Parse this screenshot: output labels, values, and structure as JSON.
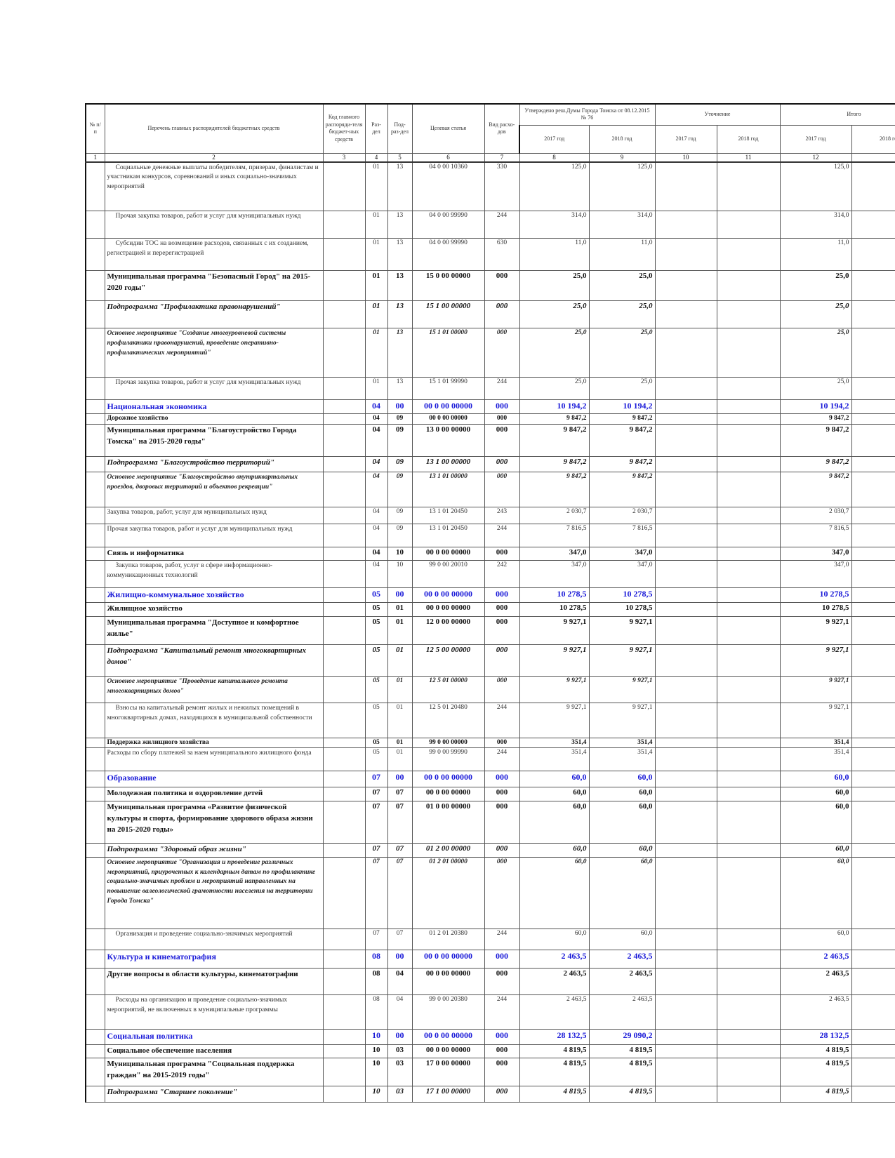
{
  "header": {
    "col_num": "№ п/п",
    "col_name": "Перечень главных распорядителей бюджетных средств",
    "col_code": "Код главного распоряди-теля бюджет-ных средств",
    "col_razdel": "Раз-дел",
    "col_podrazdel": "Под-раз-дел",
    "col_target": "Целевая статья",
    "col_vid": "Вид расхо-дов",
    "approved": "Утверждено реш.Думы Города Томска от 08.12.2015 № 76",
    "clarification": "Уточнение",
    "total": "Итого",
    "y2017": "2017 год",
    "y2018": "2018 год",
    "numbers": [
      "1",
      "2",
      "3",
      "4",
      "5",
      "6",
      "7",
      "8",
      "9",
      "10",
      "11",
      "12",
      ""
    ]
  },
  "rows": [
    {
      "style": "n",
      "name": "Социальные денежные выплаты победителям, призерам, финалистам и участникам конкурсов, соревнований и иных социально-значимых мероприятий",
      "razdel": "01",
      "podrazdel": "13",
      "target": "04 0 00 10360",
      "vid": "330",
      "a2017": "125,0",
      "a2018": "125,0",
      "t2017": "125,0"
    },
    {
      "style": "n",
      "name": "Прочая закупка товаров, работ и услуг для муниципальных нужд",
      "razdel": "01",
      "podrazdel": "13",
      "target": "04 0 00 99990",
      "vid": "244",
      "a2017": "314,0",
      "a2018": "314,0",
      "t2017": "314,0"
    },
    {
      "style": "n",
      "name": "Субсидии ТОС на возмещение расходов, связанных с их созданием, регистрацией и перерегистрацией",
      "razdel": "01",
      "podrazdel": "13",
      "target": "04 0 00 99990",
      "vid": "630",
      "a2017": "11,0",
      "a2018": "11,0",
      "t2017": "11,0"
    },
    {
      "style": "b",
      "name": "Муниципальная программа \"Безопасный Город\" на 2015-2020 годы\"",
      "razdel": "01",
      "podrazdel": "13",
      "target": "15 0 00 00000",
      "vid": "000",
      "a2017": "25,0",
      "a2018": "25,0",
      "t2017": "25,0"
    },
    {
      "style": "bi",
      "name": "Подпрограмма \"Профилактика правонарушений\"",
      "razdel": "01",
      "podrazdel": "13",
      "target": "15 1 00 00000",
      "vid": "000",
      "a2017": "25,0",
      "a2018": "25,0",
      "t2017": "25,0"
    },
    {
      "style": "bis",
      "name": "Основное мероприятие \"Создание многоуровневой системы профилактики правонарушений, проведение оперативно-профилактических мероприятий\"",
      "razdel": "01",
      "podrazdel": "13",
      "target": "15 1 01 00000",
      "vid": "000",
      "a2017": "25,0",
      "a2018": "25,0",
      "t2017": "25,0"
    },
    {
      "style": "n",
      "name": "Прочая закупка товаров, работ и услуг для муниципальных нужд",
      "razdel": "01",
      "podrazdel": "13",
      "target": "15 1 01 99990",
      "vid": "244",
      "a2017": "25,0",
      "a2018": "25,0",
      "t2017": "25,0"
    },
    {
      "style": "blue",
      "name": "Национальная экономика",
      "razdel": "04",
      "podrazdel": "00",
      "target": "00 0 00 00000",
      "vid": "000",
      "a2017": "10 194,2",
      "a2018": "10 194,2",
      "t2017": "10 194,2"
    },
    {
      "style": "bs",
      "name": "Дорожное хозяйство",
      "razdel": "04",
      "podrazdel": "09",
      "target": "00 0 00 00000",
      "vid": "000",
      "a2017": "9 847,2",
      "a2018": "9 847,2",
      "t2017": "9 847,2"
    },
    {
      "style": "b",
      "name": "Муниципальная программа \"Благоустройство Города Томска\" на 2015-2020 годы\"",
      "razdel": "04",
      "podrazdel": "09",
      "target": "13 0 00 00000",
      "vid": "000",
      "a2017": "9 847,2",
      "a2018": "9 847,2",
      "t2017": "9 847,2"
    },
    {
      "style": "bi",
      "name": "Подпрограмма \"Благоустройство территорий\"",
      "razdel": "04",
      "podrazdel": "09",
      "target": "13 1 00 00000",
      "vid": "000",
      "a2017": "9 847,2",
      "a2018": "9 847,2",
      "t2017": "9 847,2"
    },
    {
      "style": "bis",
      "name": "Основное мероприятие \"Благоустройство внутриквартальных проездов, дворовых территорий и объектов рекреации\"",
      "razdel": "04",
      "podrazdel": "09",
      "target": "13 1 01 00000",
      "vid": "000",
      "a2017": "9 847,2",
      "a2018": "9 847,2",
      "t2017": "9 847,2"
    },
    {
      "style": "n0",
      "name": "Закупка товаров, работ, услуг для муниципальных нужд",
      "razdel": "04",
      "podrazdel": "09",
      "target": "13 1 01 20450",
      "vid": "243",
      "a2017": "2 030,7",
      "a2018": "2 030,7",
      "t2017": "2 030,7"
    },
    {
      "style": "n0",
      "name": "Прочая закупка товаров, работ и услуг для муниципальных нужд",
      "razdel": "04",
      "podrazdel": "09",
      "target": "13 1 01 20450",
      "vid": "244",
      "a2017": "7 816,5",
      "a2018": "7 816,5",
      "t2017": "7 816,5"
    },
    {
      "style": "b",
      "name": "Связь и информатика",
      "razdel": "04",
      "podrazdel": "10",
      "target": "00 0 00 00000",
      "vid": "000",
      "a2017": "347,0",
      "a2018": "347,0",
      "t2017": "347,0"
    },
    {
      "style": "n",
      "name": "Закупка товаров, работ, услуг в сфере информационно-коммуникационных технологий",
      "razdel": "04",
      "podrazdel": "10",
      "target": "99 0 00 20010",
      "vid": "242",
      "a2017": "347,0",
      "a2018": "347,0",
      "t2017": "347,0"
    },
    {
      "style": "blue",
      "name": "Жилищно-коммунальное хозяйство",
      "razdel": "05",
      "podrazdel": "00",
      "target": "00 0 00 00000",
      "vid": "000",
      "a2017": "10 278,5",
      "a2018": "10 278,5",
      "t2017": "10 278,5"
    },
    {
      "style": "b",
      "name": "Жилищное хозяйство",
      "razdel": "05",
      "podrazdel": "01",
      "target": "00 0 00 00000",
      "vid": "000",
      "a2017": "10 278,5",
      "a2018": "10 278,5",
      "t2017": "10 278,5"
    },
    {
      "style": "b",
      "name": "Муниципальная программа \"Доступное и комфортное жилье\"",
      "razdel": "05",
      "podrazdel": "01",
      "target": "12 0 00 00000",
      "vid": "000",
      "a2017": "9 927,1",
      "a2018": "9 927,1",
      "t2017": "9 927,1"
    },
    {
      "style": "bi",
      "name": "Подпрограмма \"Капитальный ремонт многоквартирных домов\"",
      "razdel": "05",
      "podrazdel": "01",
      "target": "12 5 00 00000",
      "vid": "000",
      "a2017": "9 927,1",
      "a2018": "9 927,1",
      "t2017": "9 927,1"
    },
    {
      "style": "bis",
      "name": "Основное мероприятие \"Проведение капитального ремонта многоквартирных домов\"",
      "razdel": "05",
      "podrazdel": "01",
      "target": "12 5 01 00000",
      "vid": "000",
      "a2017": "9 927,1",
      "a2018": "9 927,1",
      "t2017": "9 927,1"
    },
    {
      "style": "n",
      "name": "Взносы на капитальный ремонт жилых и нежилых помещений в многоквартирных домах, находящихся в муниципальной собственности",
      "razdel": "05",
      "podrazdel": "01",
      "target": "12 5 01 20480",
      "vid": "244",
      "a2017": "9 927,1",
      "a2018": "9 927,1",
      "t2017": "9 927,1"
    },
    {
      "style": "bs",
      "name": "Поддержка жилищного хозяйства",
      "razdel": "05",
      "podrazdel": "01",
      "target": "99 0 00 00000",
      "vid": "000",
      "a2017": "351,4",
      "a2018": "351,4",
      "t2017": "351,4"
    },
    {
      "style": "n0",
      "name": "Расходы по сбору платежей за наем муниципального жилищного фонда",
      "razdel": "05",
      "podrazdel": "01",
      "target": "99 0 00 99990",
      "vid": "244",
      "a2017": "351,4",
      "a2018": "351,4",
      "t2017": "351,4"
    },
    {
      "style": "blue",
      "name": "Образование",
      "razdel": "07",
      "podrazdel": "00",
      "target": "00 0 00 00000",
      "vid": "000",
      "a2017": "60,0",
      "a2018": "60,0",
      "t2017": "60,0"
    },
    {
      "style": "b",
      "name": "Молодежная политика и оздоровление детей",
      "razdel": "07",
      "podrazdel": "07",
      "target": "00 0 00 00000",
      "vid": "000",
      "a2017": "60,0",
      "a2018": "60,0",
      "t2017": "60,0"
    },
    {
      "style": "b",
      "name": "Муниципальная программа «Развитие физической культуры и спорта, формирование здорового образа жизни на 2015-2020 годы»",
      "razdel": "07",
      "podrazdel": "07",
      "target": "01 0 00 00000",
      "vid": "000",
      "a2017": "60,0",
      "a2018": "60,0",
      "t2017": "60,0"
    },
    {
      "style": "bi",
      "name": "Подпрограмма \"Здоровый образ жизни\"",
      "razdel": "07",
      "podrazdel": "07",
      "target": "01 2 00 00000",
      "vid": "000",
      "a2017": "60,0",
      "a2018": "60,0",
      "t2017": "60,0"
    },
    {
      "style": "bis",
      "name": "Основное мероприятие \"Организация и проведение различных мероприятий, приуроченных к календарным датам по профилактике социально-значимых проблем и мероприятий направленных на повышение валеологической грамотности населения на территории Города Томска\"",
      "razdel": "07",
      "podrazdel": "07",
      "target": "01 2 01 00000",
      "vid": "000",
      "a2017": "60,0",
      "a2018": "60,0",
      "t2017": "60,0"
    },
    {
      "style": "n",
      "name": "Организация и проведение социально-значимых мероприятий",
      "razdel": "07",
      "podrazdel": "07",
      "target": "01 2 01 20380",
      "vid": "244",
      "a2017": "60,0",
      "a2018": "60,0",
      "t2017": "60,0"
    },
    {
      "style": "blue",
      "name": "Культура и кинематография",
      "razdel": "08",
      "podrazdel": "00",
      "target": "00 0 00 00000",
      "vid": "000",
      "a2017": "2 463,5",
      "a2018": "2 463,5",
      "t2017": "2 463,5"
    },
    {
      "style": "b",
      "name": "Другие вопросы в области культуры, кинематографии",
      "razdel": "08",
      "podrazdel": "04",
      "target": "00 0 00 00000",
      "vid": "000",
      "a2017": "2 463,5",
      "a2018": "2 463,5",
      "t2017": "2 463,5"
    },
    {
      "style": "n",
      "name": "Расходы на организацию и проведение социально-значимых мероприятий, не включенных в муниципальные программы",
      "razdel": "08",
      "podrazdel": "04",
      "target": "99 0 00 20380",
      "vid": "244",
      "a2017": "2 463,5",
      "a2018": "2 463,5",
      "t2017": "2 463,5"
    },
    {
      "style": "blue",
      "name": "Социальная политика",
      "razdel": "10",
      "podrazdel": "00",
      "target": "00 0 00 00000",
      "vid": "000",
      "a2017": "28 132,5",
      "a2018": "29 090,2",
      "t2017": "28 132,5"
    },
    {
      "style": "b",
      "name": "Социальное обеспечение населения",
      "razdel": "10",
      "podrazdel": "03",
      "target": "00 0 00 00000",
      "vid": "000",
      "a2017": "4 819,5",
      "a2018": "4 819,5",
      "t2017": "4 819,5"
    },
    {
      "style": "b",
      "name": "Муниципальная программа \"Социальная поддержка граждан\" на 2015-2019 годы\"",
      "razdel": "10",
      "podrazdel": "03",
      "target": "17 0 00 00000",
      "vid": "000",
      "a2017": "4 819,5",
      "a2018": "4 819,5",
      "t2017": "4 819,5"
    },
    {
      "style": "bi",
      "name": "Подпрограмма \"Старшее поколение\"",
      "razdel": "10",
      "podrazdel": "03",
      "target": "17 1 00 00000",
      "vid": "000",
      "a2017": "4 819,5",
      "a2018": "4 819,5",
      "t2017": "4 819,5"
    }
  ]
}
